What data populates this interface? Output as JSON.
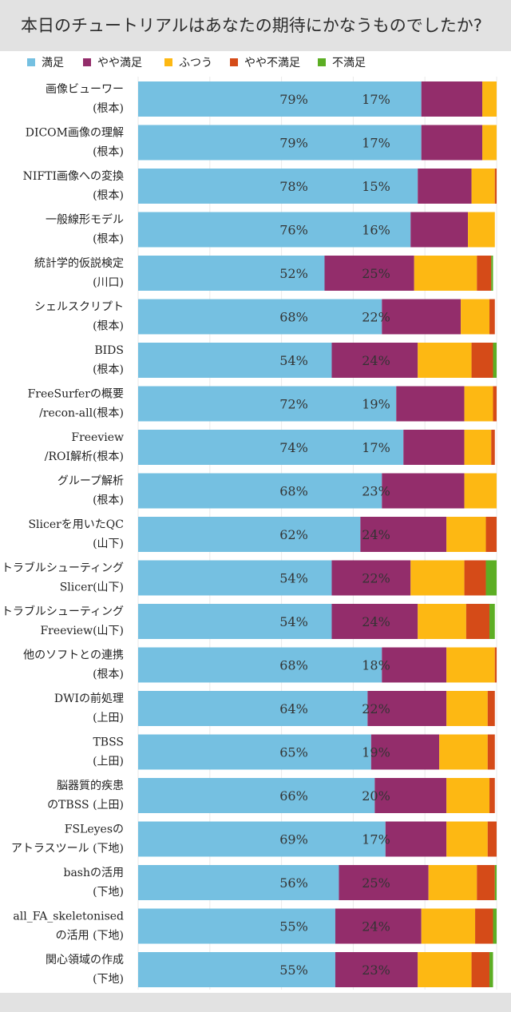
{
  "chart_data": {
    "type": "bar",
    "orientation": "horizontal",
    "stacked": true,
    "title": "本日のチュートリアルはあなたの期待にかなうものでしたか?",
    "xlim": [
      0,
      100
    ],
    "legend_position": "top",
    "series": [
      {
        "name": "満足",
        "color": "#75c0e1",
        "values": [
          79,
          79,
          78,
          76,
          52,
          68,
          54,
          72,
          74,
          68,
          62,
          54,
          54,
          68,
          64,
          65,
          66,
          69,
          56,
          55,
          55
        ]
      },
      {
        "name": "やや満足",
        "color": "#932d6b",
        "values": [
          17,
          17,
          15,
          16,
          25,
          22,
          24,
          19,
          17,
          23,
          24,
          22,
          24,
          18,
          22,
          19,
          20,
          17,
          25,
          24,
          23
        ]
      },
      {
        "name": "ふつう",
        "color": "#fdb813",
        "values": [
          4,
          4,
          6.5,
          7.5,
          17.5,
          8,
          15,
          8,
          7.5,
          9,
          11,
          15,
          13.5,
          13.5,
          11.5,
          13.5,
          12,
          11.5,
          13.5,
          15,
          15
        ]
      },
      {
        "name": "やや不満足",
        "color": "#d54b18",
        "values": [
          0,
          0,
          0.5,
          0,
          4,
          1.5,
          6,
          1,
          1,
          0,
          3,
          6,
          6.5,
          0.5,
          2,
          2,
          1.5,
          2.5,
          5,
          5,
          5
        ]
      },
      {
        "name": "不満足",
        "color": "#5cae24",
        "values": [
          0,
          0,
          0,
          0,
          0.5,
          0,
          1,
          0,
          0,
          0,
          0,
          3,
          1.5,
          0,
          0,
          0,
          0,
          0,
          0.5,
          1,
          1
        ]
      }
    ],
    "categories": [
      [
        "画像ビューワー",
        "(根本)"
      ],
      [
        "DICOM画像の理解",
        "(根本)"
      ],
      [
        "NIFTI画像への変換",
        "(根本)"
      ],
      [
        "一般線形モデル",
        "(根本)"
      ],
      [
        "統計学的仮説検定",
        "(川口)"
      ],
      [
        "シェルスクリプト",
        "(根本)"
      ],
      [
        "BIDS",
        "(根本)"
      ],
      [
        "FreeSurferの概要",
        "/recon-all(根本)"
      ],
      [
        "Freeview",
        "/ROI解析(根本)"
      ],
      [
        "グループ解析",
        "(根本)"
      ],
      [
        "Slicerを用いたQC",
        "(山下)"
      ],
      [
        "トラブルシューティング",
        "Slicer(山下)"
      ],
      [
        "トラブルシューティング",
        "Freeview(山下)"
      ],
      [
        "他のソフトとの連携",
        "(根本)"
      ],
      [
        "DWIの前処理",
        "(上田)"
      ],
      [
        "TBSS",
        "(上田)"
      ],
      [
        "脳器質的疾患",
        "のTBSS (上田)"
      ],
      [
        "FSLeyesの",
        "アトラスツール (下地)"
      ],
      [
        "bashの活用",
        "(下地)"
      ],
      [
        "all_FA_skeletonised",
        "の活用 (下地)"
      ],
      [
        "関心領域の作成",
        "(下地)"
      ]
    ],
    "data_labels": [
      [
        "79%",
        "17%"
      ],
      [
        "79%",
        "17%"
      ],
      [
        "78%",
        "15%"
      ],
      [
        "76%",
        "16%"
      ],
      [
        "52%",
        "25%"
      ],
      [
        "68%",
        "22%"
      ],
      [
        "54%",
        "24%"
      ],
      [
        "72%",
        "19%"
      ],
      [
        "74%",
        "17%"
      ],
      [
        "68%",
        "23%"
      ],
      [
        "62%",
        "24%"
      ],
      [
        "54%",
        "22%"
      ],
      [
        "54%",
        "24%"
      ],
      [
        "68%",
        "18%"
      ],
      [
        "64%",
        "22%"
      ],
      [
        "65%",
        "19%"
      ],
      [
        "66%",
        "20%"
      ],
      [
        "69%",
        "17%"
      ],
      [
        "56%",
        "25%"
      ],
      [
        "55%",
        "24%"
      ],
      [
        "55%",
        "23%"
      ]
    ]
  }
}
